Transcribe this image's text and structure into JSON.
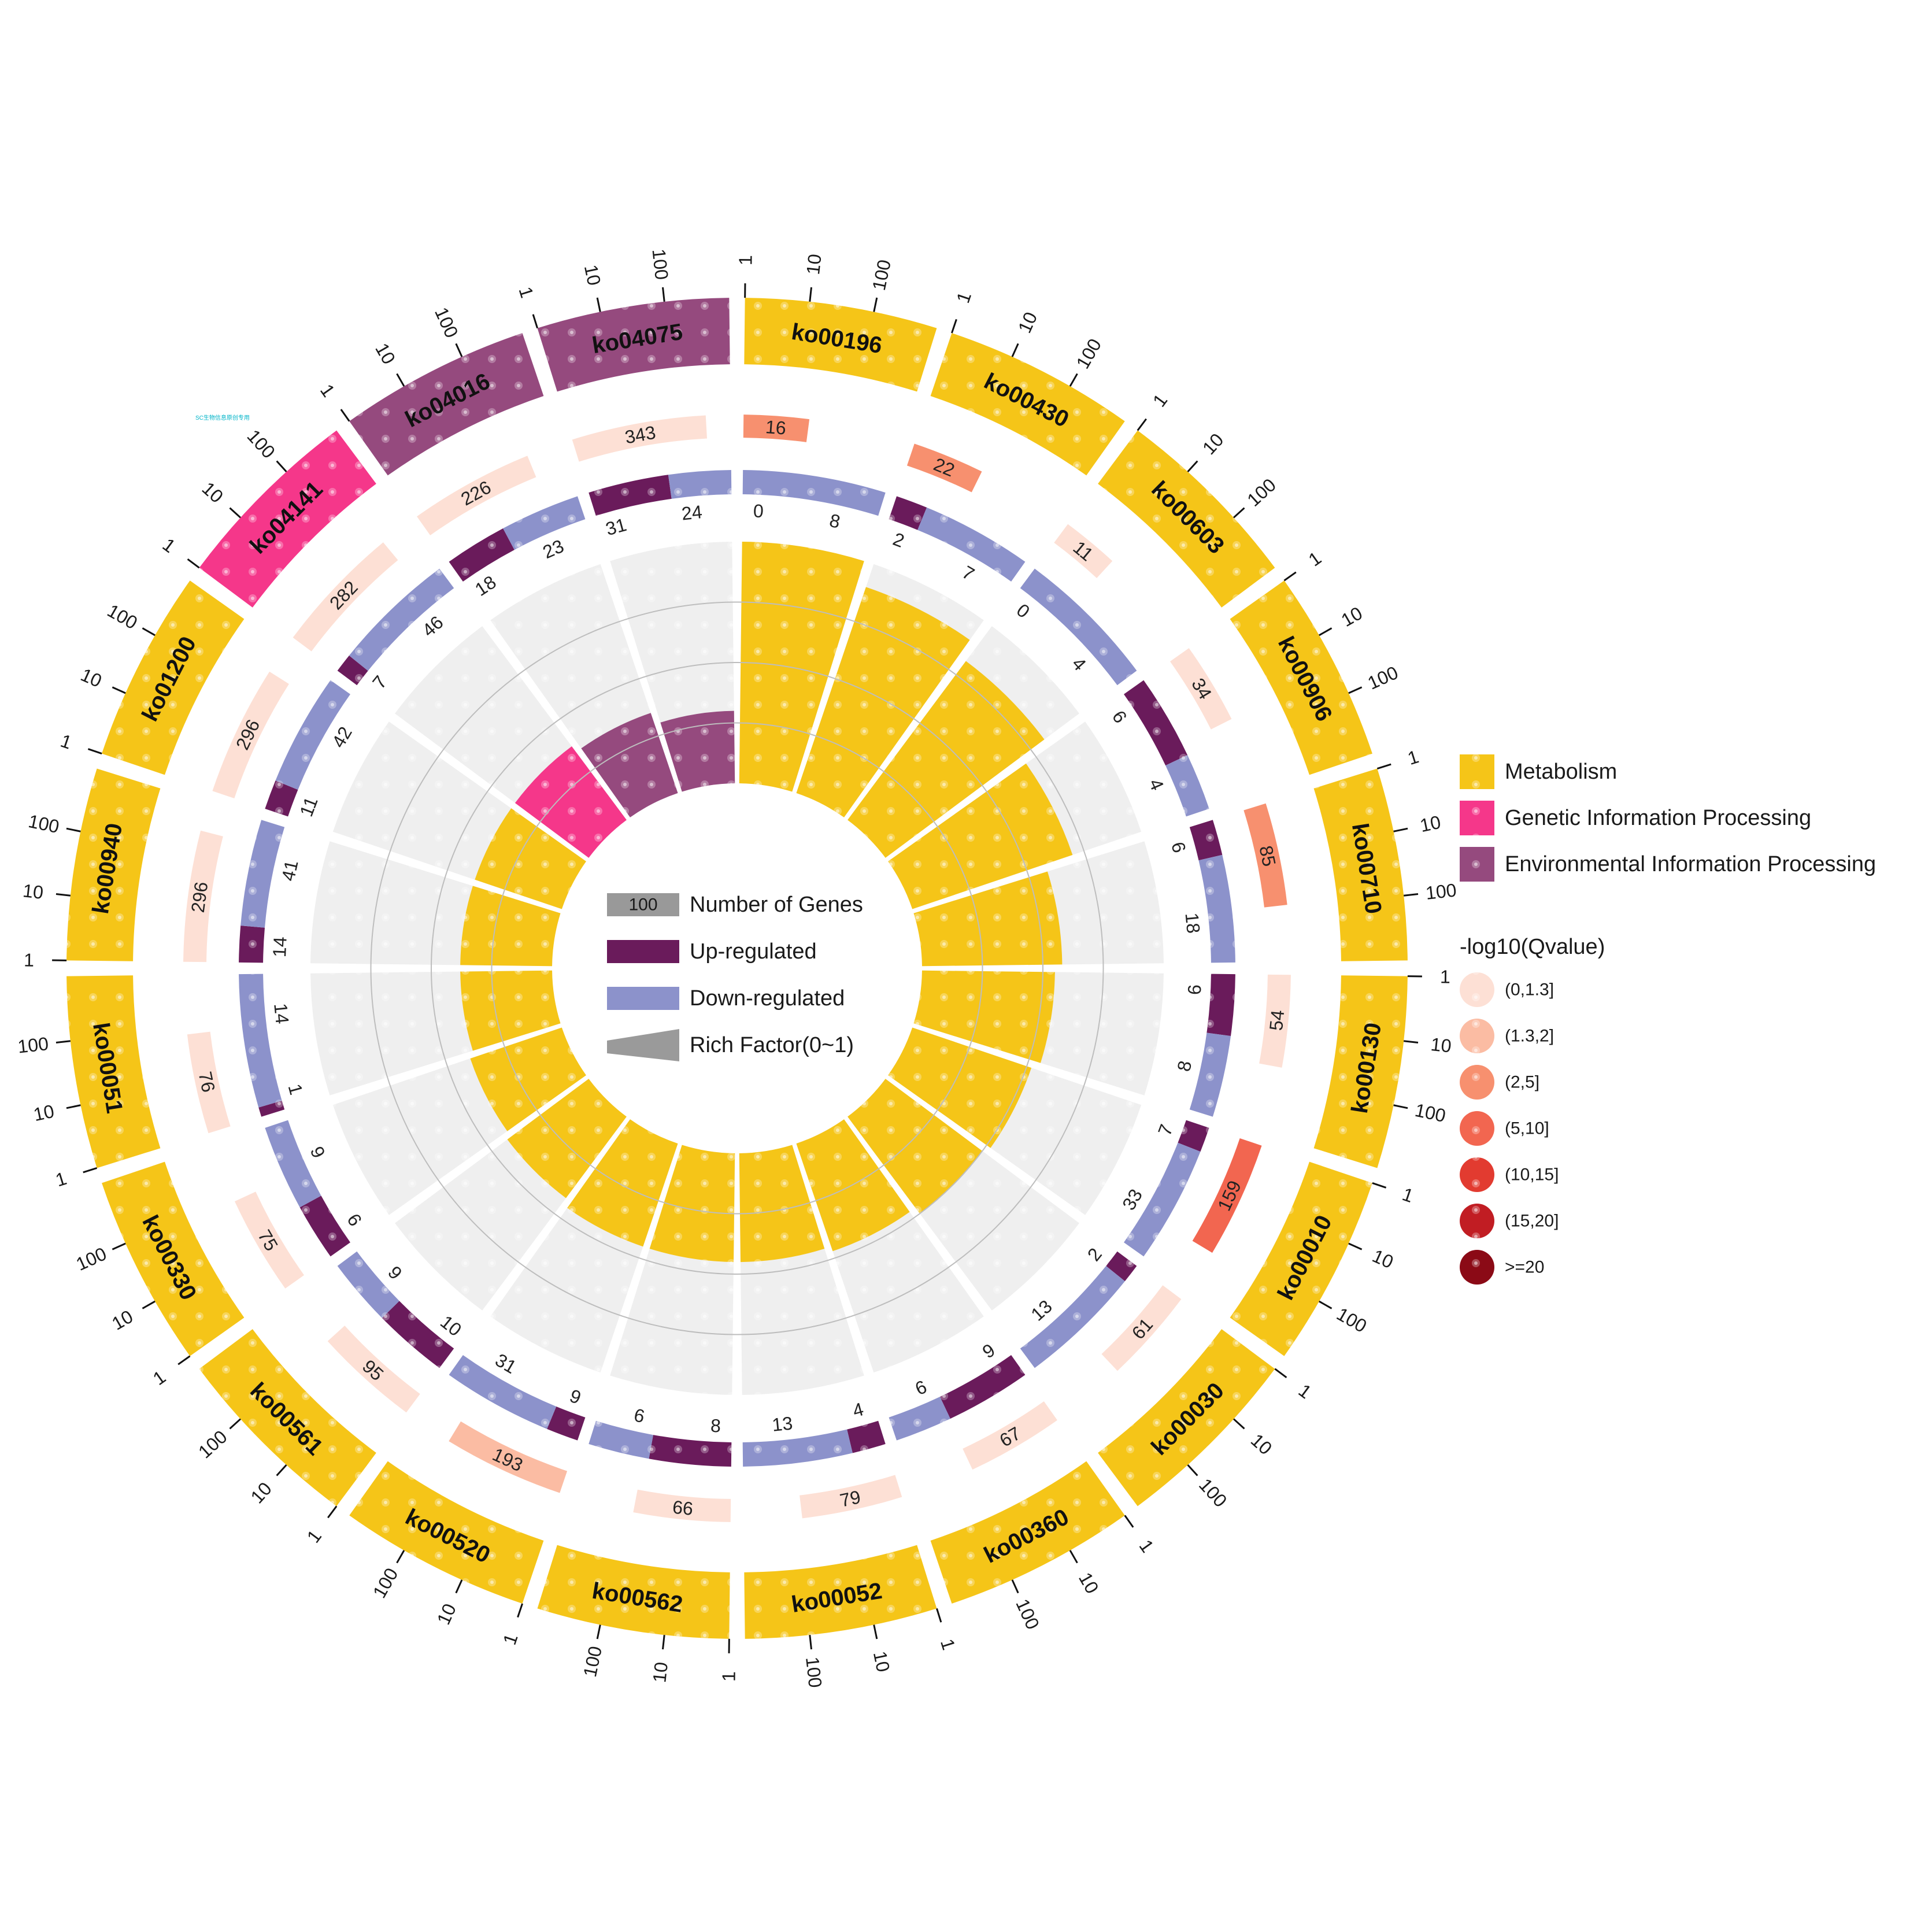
{
  "watermark": "SC生物信息原创专用",
  "chart_data": {
    "type": "circular-enrichment",
    "pathways": [
      {
        "id": "ko00196",
        "category": "Metabolism",
        "total": 16,
        "qvalue_class": 2,
        "up": 0,
        "down": 8,
        "rich_factor": 1.0
      },
      {
        "id": "ko00430",
        "category": "Metabolism",
        "total": 22,
        "qvalue_class": 2,
        "up": 2,
        "down": 7,
        "rich_factor": 0.9
      },
      {
        "id": "ko00603",
        "category": "Metabolism",
        "total": 11,
        "qvalue_class": 0,
        "up": 0,
        "down": 4,
        "rich_factor": 0.82
      },
      {
        "id": "ko00906",
        "category": "Metabolism",
        "total": 34,
        "qvalue_class": 0,
        "up": 6,
        "down": 4,
        "rich_factor": 0.7
      },
      {
        "id": "ko00710",
        "category": "Metabolism",
        "total": 85,
        "qvalue_class": 2,
        "up": 6,
        "down": 18,
        "rich_factor": 0.58
      },
      {
        "id": "ko00130",
        "category": "Metabolism",
        "total": 54,
        "qvalue_class": 0,
        "up": 6,
        "down": 8,
        "rich_factor": 0.55
      },
      {
        "id": "ko00010",
        "category": "Metabolism",
        "total": 159,
        "qvalue_class": 3,
        "up": 7,
        "down": 33,
        "rich_factor": 0.52
      },
      {
        "id": "ko00030",
        "category": "Metabolism",
        "total": 61,
        "qvalue_class": 0,
        "up": 2,
        "down": 13,
        "rich_factor": 0.5
      },
      {
        "id": "ko00360",
        "category": "Metabolism",
        "total": 67,
        "qvalue_class": 0,
        "up": 9,
        "down": 6,
        "rich_factor": 0.47
      },
      {
        "id": "ko00052",
        "category": "Metabolism",
        "total": 79,
        "qvalue_class": 0,
        "up": 4,
        "down": 13,
        "rich_factor": 0.45
      },
      {
        "id": "ko00562",
        "category": "Metabolism",
        "total": 66,
        "qvalue_class": 0,
        "up": 8,
        "down": 6,
        "rich_factor": 0.45
      },
      {
        "id": "ko00520",
        "category": "Metabolism",
        "total": 193,
        "qvalue_class": 1,
        "up": 9,
        "down": 31,
        "rich_factor": 0.45
      },
      {
        "id": "ko00561",
        "category": "Metabolism",
        "total": 95,
        "qvalue_class": 0,
        "up": 10,
        "down": 9,
        "rich_factor": 0.42
      },
      {
        "id": "ko00330",
        "category": "Metabolism",
        "total": 75,
        "qvalue_class": 0,
        "up": 6,
        "down": 9,
        "rich_factor": 0.4
      },
      {
        "id": "ko00051",
        "category": "Metabolism",
        "total": 76,
        "qvalue_class": 0,
        "up": 1,
        "down": 14,
        "rich_factor": 0.38
      },
      {
        "id": "ko00940",
        "category": "Metabolism",
        "total": 296,
        "qvalue_class": 0,
        "up": 14,
        "down": 41,
        "rich_factor": 0.38
      },
      {
        "id": "ko01200",
        "category": "Metabolism",
        "total": 296,
        "qvalue_class": 0,
        "up": 11,
        "down": 42,
        "rich_factor": 0.38
      },
      {
        "id": "ko04141",
        "category": "Genetic Information Processing",
        "total": 282,
        "qvalue_class": 0,
        "up": 7,
        "down": 46,
        "rich_factor": 0.38
      },
      {
        "id": "ko04016",
        "category": "Environmental Information Processing",
        "total": 226,
        "qvalue_class": 0,
        "up": 18,
        "down": 23,
        "rich_factor": 0.35
      },
      {
        "id": "ko04075",
        "category": "Environmental Information Processing",
        "total": 343,
        "qvalue_class": 0,
        "up": 31,
        "down": 24,
        "rich_factor": 0.3
      }
    ],
    "outer_axis_ticks": [
      "1",
      "10",
      "100"
    ],
    "legend_categories": [
      {
        "name": "Metabolism",
        "color": "#f5c518"
      },
      {
        "name": "Genetic Information Processing",
        "color": "#f5378a"
      },
      {
        "name": "Environmental Information Processing",
        "color": "#954a7e"
      }
    ],
    "qvalue_legend_title": "-log10(Qvalue)",
    "qvalue_legend": [
      {
        "label": "(0,1.3]",
        "color": "#fde0d5"
      },
      {
        "label": "(1.3,2]",
        "color": "#fbbca3"
      },
      {
        "label": "(2,5]",
        "color": "#f7906f"
      },
      {
        "label": "(5,10]",
        "color": "#f26650"
      },
      {
        "label": "(10,15]",
        "color": "#e23b30"
      },
      {
        "label": "(15,20]",
        "color": "#c11d23"
      },
      {
        "label": ">=20",
        "color": "#8b0a16"
      }
    ],
    "center_legend": [
      {
        "label": "Number of Genes",
        "sample": "100",
        "kind": "genes"
      },
      {
        "label": "Up-regulated",
        "kind": "up",
        "color": "#6a1b5b"
      },
      {
        "label": "Down-regulated",
        "kind": "down",
        "color": "#8c92cb"
      },
      {
        "label": "Rich Factor(0~1)",
        "kind": "rich"
      }
    ],
    "colors": {
      "metabolism": "#f5c518",
      "genetic": "#f5378a",
      "environmental": "#954a7e",
      "up": "#6a1b5b",
      "down": "#8c92cb",
      "background": "#efefef"
    }
  }
}
